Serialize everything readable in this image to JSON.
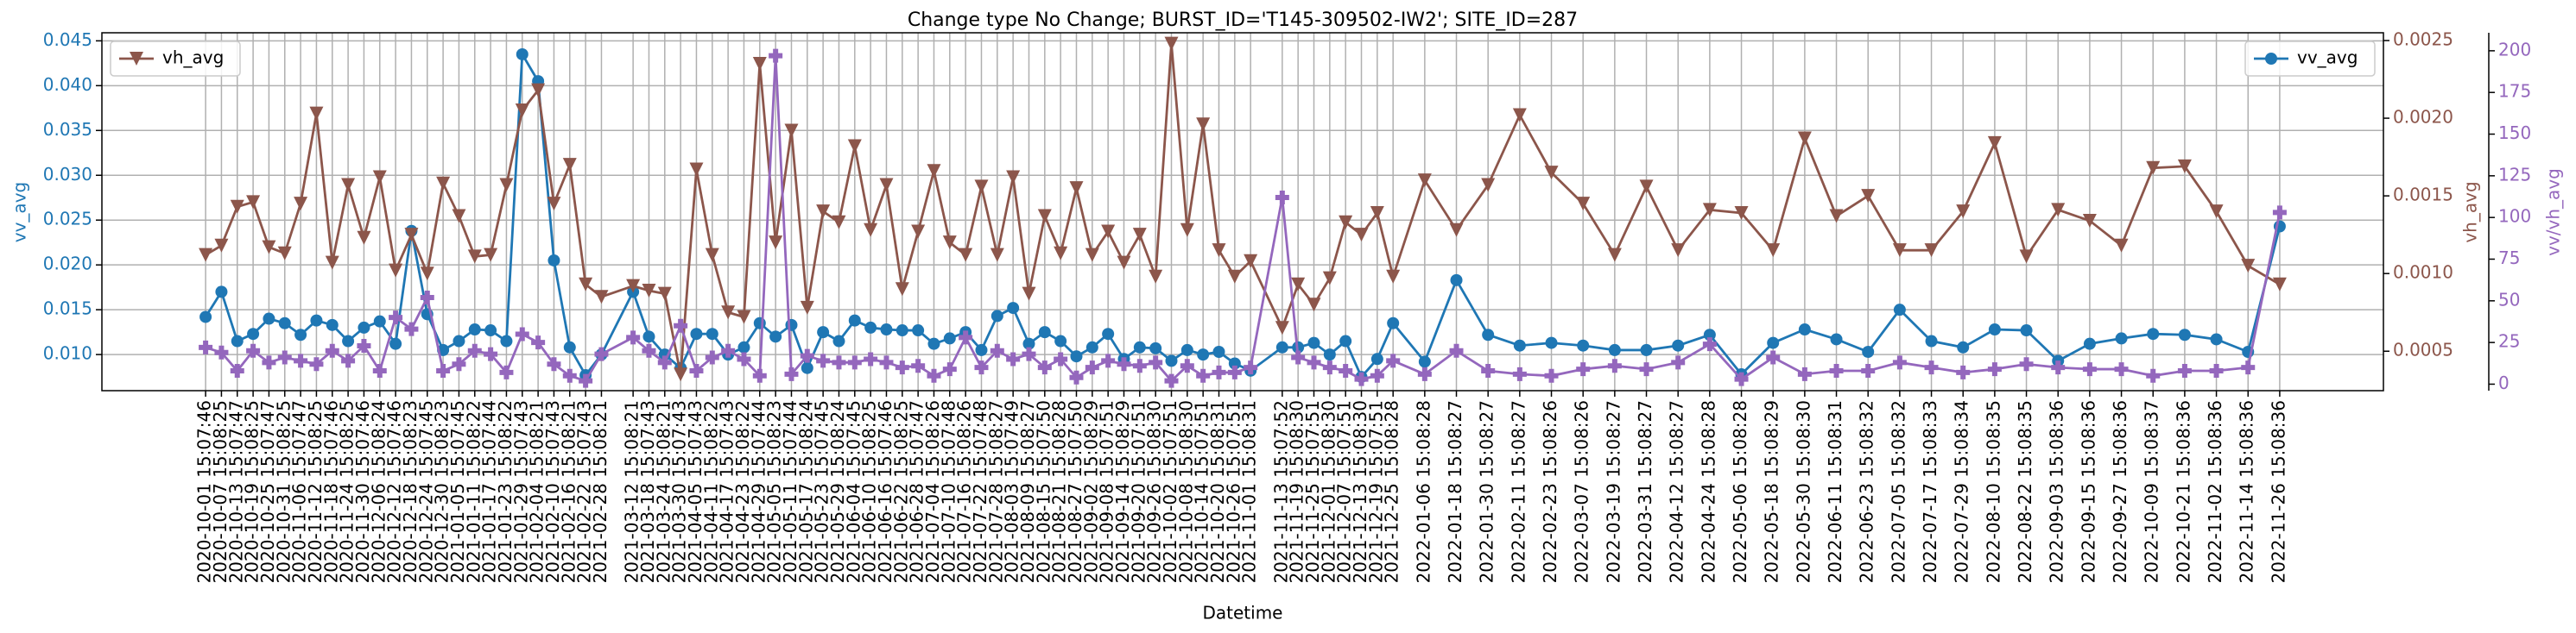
{
  "chart_data": {
    "type": "line",
    "title": "Change type No Change; BURST_ID='T145-309502-IW2'; SITE_ID=287",
    "xlabel": "Datetime",
    "ylabel": "vv_avg",
    "y2label": "vh_avg",
    "y3label": "vv/vh_avg",
    "grid": true,
    "x": [
      "2020-10-01 15:07:46",
      "2020-10-07 15:08:25",
      "2020-10-13 15:07:47",
      "2020-10-19 15:08:25",
      "2020-10-25 15:07:47",
      "2020-10-31 15:08:25",
      "2020-11-06 15:07:47",
      "2020-11-12 15:08:25",
      "2020-11-18 15:07:46",
      "2020-11-24 15:08:25",
      "2020-11-30 15:07:46",
      "2020-12-06 15:08:24",
      "2020-12-12 15:07:46",
      "2020-12-18 15:08:23",
      "2020-12-24 15:07:45",
      "2020-12-30 15:08:23",
      "2021-01-05 15:07:45",
      "2021-01-11 15:08:22",
      "2021-01-17 15:07:44",
      "2021-01-23 15:08:22",
      "2021-01-29 15:07:43",
      "2021-02-04 15:08:21",
      "2021-02-10 15:07:43",
      "2021-02-16 15:08:21",
      "2021-02-22 15:07:43",
      "2021-02-28 15:08:21",
      "2021-03-12 15:08:21",
      "2021-03-18 15:07:43",
      "2021-03-24 15:08:21",
      "2021-03-30 15:07:43",
      "2021-04-05 15:07:43",
      "2021-04-11 15:08:22",
      "2021-04-17 15:07:43",
      "2021-04-23 15:08:22",
      "2021-04-29 15:07:44",
      "2021-05-05 15:08:23",
      "2021-05-11 15:07:44",
      "2021-05-17 15:08:24",
      "2021-05-23 15:07:45",
      "2021-05-29 15:08:24",
      "2021-06-04 15:07:45",
      "2021-06-10 15:08:25",
      "2021-06-16 15:07:46",
      "2021-06-22 15:08:25",
      "2021-06-28 15:07:47",
      "2021-07-04 15:08:26",
      "2021-07-10 15:07:48",
      "2021-07-16 15:08:26",
      "2021-07-22 15:07:48",
      "2021-07-28 15:08:27",
      "2021-08-03 15:07:49",
      "2021-08-09 15:08:27",
      "2021-08-15 15:07:50",
      "2021-08-21 15:08:28",
      "2021-08-27 15:07:50",
      "2021-09-02 15:08:29",
      "2021-09-08 15:07:51",
      "2021-09-14 15:08:29",
      "2021-09-20 15:07:51",
      "2021-09-26 15:08:30",
      "2021-10-02 15:07:51",
      "2021-10-08 15:08:30",
      "2021-10-14 15:07:51",
      "2021-10-20 15:08:31",
      "2021-10-26 15:07:51",
      "2021-11-01 15:08:31",
      "2021-11-13 15:07:52",
      "2021-11-19 15:08:30",
      "2021-11-25 15:07:51",
      "2021-12-01 15:08:30",
      "2021-12-07 15:07:51",
      "2021-12-13 15:08:30",
      "2021-12-19 15:07:51",
      "2021-12-25 15:08:28",
      "2022-01-06 15:08:28",
      "2022-01-18 15:08:27",
      "2022-01-30 15:08:27",
      "2022-02-11 15:08:27",
      "2022-02-23 15:08:26",
      "2022-03-07 15:08:26",
      "2022-03-19 15:08:27",
      "2022-03-31 15:08:27",
      "2022-04-12 15:08:27",
      "2022-04-24 15:08:28",
      "2022-05-06 15:08:28",
      "2022-05-18 15:08:29",
      "2022-05-30 15:08:30",
      "2022-06-11 15:08:31",
      "2022-06-23 15:08:32",
      "2022-07-05 15:08:32",
      "2022-07-17 15:08:33",
      "2022-07-29 15:08:34",
      "2022-08-10 15:08:35",
      "2022-08-22 15:08:35",
      "2022-09-03 15:08:36",
      "2022-09-15 15:08:36",
      "2022-09-27 15:08:36",
      "2022-10-09 15:08:37",
      "2022-10-21 15:08:36",
      "2022-11-02 15:08:36",
      "2022-11-14 15:08:36",
      "2022-11-26 15:08:36"
    ],
    "series": [
      {
        "name": "vv_avg",
        "color": "#1f77b4",
        "marker": "circle",
        "axis": "y",
        "legend": "upper right",
        "values": [
          0.0142,
          0.017,
          0.0115,
          0.0123,
          0.014,
          0.0135,
          0.0122,
          0.0138,
          0.0133,
          0.0115,
          0.013,
          0.0137,
          0.0112,
          0.0238,
          0.0145,
          0.0105,
          0.0115,
          0.0128,
          0.0127,
          0.0115,
          0.0435,
          0.0405,
          0.0205,
          0.0108,
          0.0077,
          0.01,
          0.017,
          0.012,
          0.01,
          0.0085,
          0.0123,
          0.0123,
          0.01,
          0.0108,
          0.0135,
          0.012,
          0.0133,
          0.0085,
          0.0125,
          0.0115,
          0.0138,
          0.013,
          0.0128,
          0.0127,
          0.0127,
          0.0112,
          0.0118,
          0.0125,
          0.0105,
          0.0143,
          0.0152,
          0.0112,
          0.0125,
          0.0115,
          0.0098,
          0.0108,
          0.0123,
          0.0095,
          0.0108,
          0.0107,
          0.0093,
          0.0105,
          0.01,
          0.0103,
          0.009,
          0.0082,
          0.0108,
          0.0108,
          0.0113,
          0.01,
          0.0115,
          0.0075,
          0.0095,
          0.0135,
          0.0092,
          0.0183,
          0.0122,
          0.011,
          0.0113,
          0.011,
          0.0105,
          0.0105,
          0.011,
          0.0122,
          0.0078,
          0.0113,
          0.0128,
          0.0117,
          0.0103,
          0.015,
          0.0115,
          0.0108,
          0.0128,
          0.0127,
          0.0093,
          0.0112,
          0.0118,
          0.0123,
          0.0122,
          0.0117,
          0.0103,
          0.0243
        ]
      },
      {
        "name": "vh_avg",
        "color": "#8c564b",
        "marker": "triangle-down",
        "axis": "y2",
        "legend": "upper left",
        "values": [
          0.00112,
          0.00118,
          0.00143,
          0.00146,
          0.00117,
          0.00113,
          0.00145,
          0.00203,
          0.00107,
          0.00157,
          0.00123,
          0.00162,
          0.00102,
          0.00125,
          0.001,
          0.00158,
          0.00137,
          0.00111,
          0.00112,
          0.00157,
          0.00205,
          0.00218,
          0.00145,
          0.0017,
          0.00093,
          0.00085,
          0.00092,
          0.00089,
          0.00087,
          0.00035,
          0.00167,
          0.00112,
          0.00075,
          0.00072,
          0.00235,
          0.0012,
          0.00192,
          0.00078,
          0.0014,
          0.00133,
          0.00182,
          0.00128,
          0.00157,
          0.0009,
          0.00127,
          0.00166,
          0.0012,
          0.00112,
          0.00156,
          0.00112,
          0.00162,
          0.00087,
          0.00137,
          0.00113,
          0.00155,
          0.00112,
          0.00127,
          0.00107,
          0.00125,
          0.00098,
          0.00248,
          0.00128,
          0.00196,
          0.00115,
          0.00098,
          0.00108,
          0.00065,
          0.00093,
          0.0008,
          0.00097,
          0.00133,
          0.00125,
          0.00139,
          0.00098,
          0.0016,
          0.00128,
          0.00157,
          0.00202,
          0.00165,
          0.00145,
          0.00112,
          0.00156,
          0.00115,
          0.00141,
          0.00139,
          0.00115,
          0.00187,
          0.00137,
          0.0015,
          0.00115,
          0.00115,
          0.0014,
          0.00184,
          0.00111,
          0.00141,
          0.00134,
          0.00118,
          0.00168,
          0.00169,
          0.0014,
          0.00105,
          0.00093
        ]
      },
      {
        "color": "#9467bd",
        "marker": "plus",
        "axis": "y3",
        "values": [
          22,
          19,
          8,
          20,
          13,
          16,
          14,
          12,
          20,
          14,
          23,
          8,
          40,
          33,
          52,
          8,
          12,
          20,
          18,
          7,
          30,
          25,
          12,
          5,
          2,
          18,
          28,
          20,
          13,
          35,
          8,
          16,
          20,
          15,
          5,
          197,
          6,
          17,
          14,
          13,
          13,
          15,
          13,
          10,
          11,
          5,
          9,
          28,
          10,
          20,
          15,
          18,
          10,
          15,
          4,
          10,
          14,
          12,
          11,
          13,
          2,
          11,
          5,
          7,
          7,
          10,
          112,
          16,
          13,
          10,
          8,
          3,
          5,
          14,
          6,
          20,
          8,
          6,
          5,
          9,
          11,
          9,
          13,
          24,
          3,
          16,
          6,
          8,
          8,
          13,
          10,
          7,
          9,
          12,
          10,
          9,
          9,
          5,
          8,
          8,
          10,
          103
        ]
      }
    ],
    "ylim": [
      0.00597,
      0.0459
    ],
    "yticks": [
      {
        "value": 0.01,
        "label": "0.010"
      },
      {
        "value": 0.015,
        "label": "0.015"
      },
      {
        "value": 0.02,
        "label": "0.020"
      },
      {
        "value": 0.025,
        "label": "0.025"
      },
      {
        "value": 0.03,
        "label": "0.030"
      },
      {
        "value": 0.035,
        "label": "0.035"
      },
      {
        "value": 0.04,
        "label": "0.040"
      },
      {
        "value": 0.045,
        "label": "0.045"
      }
    ],
    "y2lim": [
      0.000246,
      0.00255
    ],
    "y2ticks": [
      {
        "value": 0.0005,
        "label": "0.0005"
      },
      {
        "value": 0.001,
        "label": "0.0010"
      },
      {
        "value": 0.0015,
        "label": "0.0015"
      },
      {
        "value": 0.002,
        "label": "0.0020"
      },
      {
        "value": 0.0025,
        "label": "0.0025"
      }
    ],
    "y3lim": [
      -3.9,
      210.8
    ],
    "y3ticks": [
      0,
      25,
      50,
      75,
      100,
      125,
      150,
      175,
      200
    ]
  }
}
